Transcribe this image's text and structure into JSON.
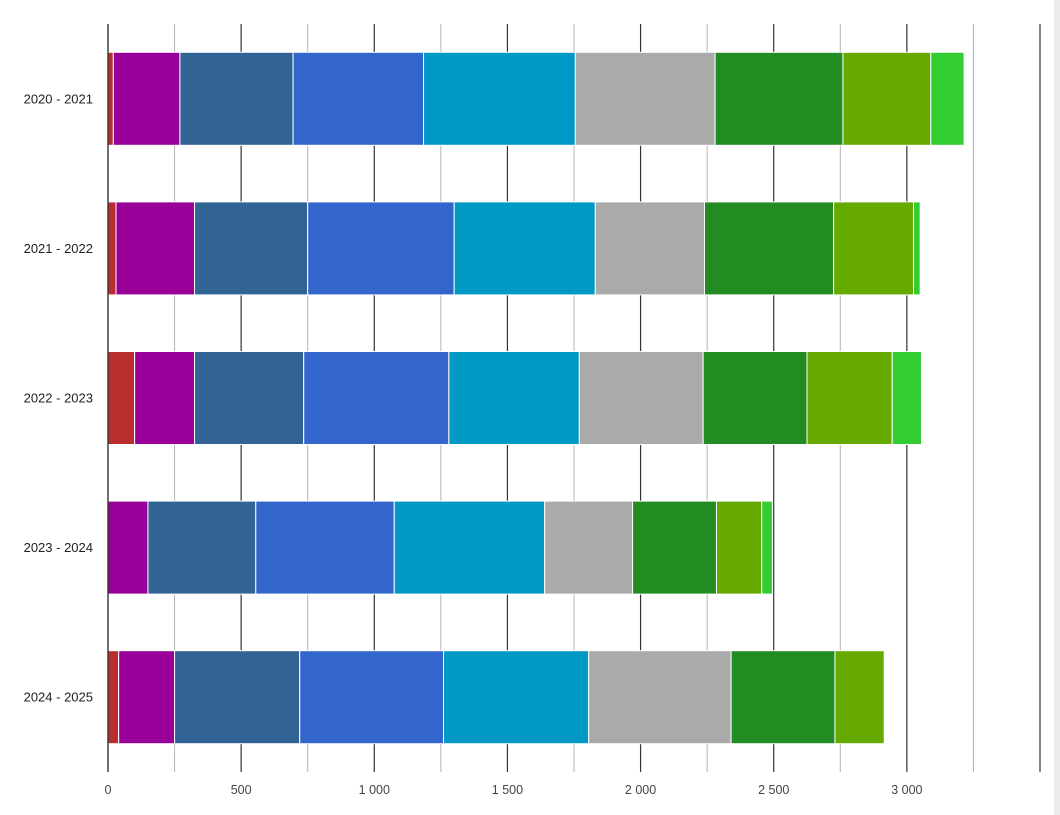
{
  "chart_data": {
    "type": "bar",
    "orientation": "horizontal",
    "stacked": true,
    "title": "",
    "xlabel": "",
    "ylabel": "",
    "xlim": [
      0,
      3500
    ],
    "x_ticks": [
      0,
      500,
      1000,
      1500,
      2000,
      2500,
      3000
    ],
    "x_tick_labels": [
      "0",
      "500",
      "1 000",
      "1 500",
      "2 000",
      "2 500",
      "3 000"
    ],
    "grid": true,
    "legend": "none",
    "categories": [
      "2020 - 2021",
      "2021 - 2022",
      "2022 - 2023",
      "2023 - 2024",
      "2024 - 2025"
    ],
    "series": [
      {
        "color": "#b82e2e",
        "values": [
          20,
          30,
          100,
          0,
          40
        ]
      },
      {
        "color": "#990099",
        "values": [
          250,
          295,
          225,
          150,
          210
        ]
      },
      {
        "color": "#316395",
        "values": [
          425,
          425,
          410,
          405,
          470
        ]
      },
      {
        "color": "#3366cc",
        "values": [
          490,
          550,
          545,
          520,
          540
        ]
      },
      {
        "color": "#0099c6",
        "values": [
          570,
          530,
          490,
          565,
          545
        ]
      },
      {
        "color": "#aaaaaa",
        "values": [
          525,
          410,
          465,
          330,
          535
        ]
      },
      {
        "color": "#228b22",
        "values": [
          480,
          485,
          390,
          315,
          390
        ]
      },
      {
        "color": "#66aa00",
        "values": [
          330,
          300,
          320,
          170,
          185
        ]
      },
      {
        "color": "#33cc33",
        "values": [
          125,
          25,
          110,
          40,
          0
        ]
      }
    ]
  }
}
